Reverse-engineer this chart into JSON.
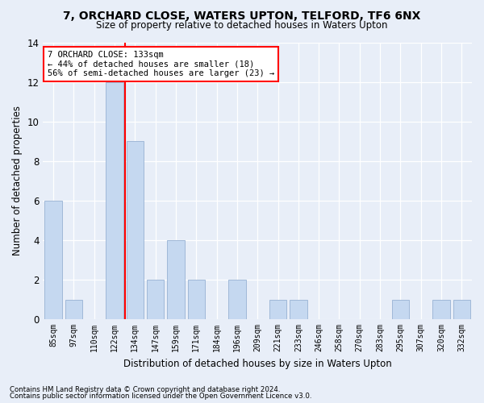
{
  "title": "7, ORCHARD CLOSE, WATERS UPTON, TELFORD, TF6 6NX",
  "subtitle": "Size of property relative to detached houses in Waters Upton",
  "xlabel": "Distribution of detached houses by size in Waters Upton",
  "ylabel": "Number of detached properties",
  "categories": [
    "85sqm",
    "97sqm",
    "110sqm",
    "122sqm",
    "134sqm",
    "147sqm",
    "159sqm",
    "171sqm",
    "184sqm",
    "196sqm",
    "209sqm",
    "221sqm",
    "233sqm",
    "246sqm",
    "258sqm",
    "270sqm",
    "283sqm",
    "295sqm",
    "307sqm",
    "320sqm",
    "332sqm"
  ],
  "values": [
    6,
    1,
    0,
    12,
    9,
    2,
    4,
    2,
    0,
    2,
    0,
    1,
    1,
    0,
    0,
    0,
    0,
    1,
    0,
    1,
    1
  ],
  "bar_color": "#c5d8f0",
  "bar_edgecolor": "#a0b8d8",
  "marker_line_index": 3,
  "marker_label": "7 ORCHARD CLOSE: 133sqm",
  "annotation_line1": "← 44% of detached houses are smaller (18)",
  "annotation_line2": "56% of semi-detached houses are larger (23) →",
  "ylim": [
    0,
    14
  ],
  "yticks": [
    0,
    2,
    4,
    6,
    8,
    10,
    12,
    14
  ],
  "footer1": "Contains HM Land Registry data © Crown copyright and database right 2024.",
  "footer2": "Contains public sector information licensed under the Open Government Licence v3.0.",
  "background_color": "#e8eef8",
  "plot_background": "#e8eef8"
}
